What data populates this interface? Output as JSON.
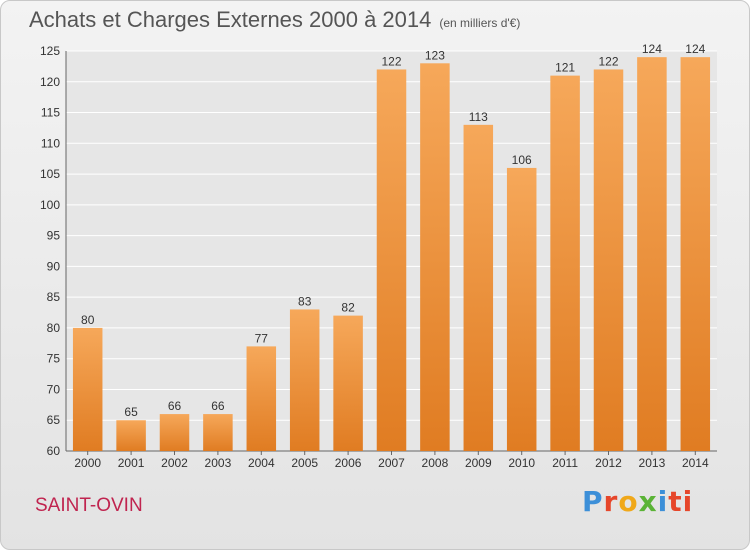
{
  "header": {
    "title": "Achats et Charges Externes 2000 à 2014",
    "subtitle": "(en milliers d'€)"
  },
  "footer": {
    "commune": "SAINT-OVIN",
    "logo_letters": [
      "P",
      "r",
      "o",
      "x",
      "i",
      "ti"
    ]
  },
  "colors": {
    "bar_light": "#f6a85a",
    "bar_dark": "#e07c22",
    "grid": "#ffffff",
    "commune": "#c0244f"
  },
  "chart_data": {
    "type": "bar",
    "title": "Achats et Charges Externes 2000 à 2014",
    "subtitle": "(en milliers d'€)",
    "categories": [
      "2000",
      "2001",
      "2002",
      "2003",
      "2004",
      "2005",
      "2006",
      "2007",
      "2008",
      "2009",
      "2010",
      "2011",
      "2012",
      "2013",
      "2014"
    ],
    "values": [
      80,
      65,
      66,
      66,
      77,
      83,
      82,
      122,
      123,
      113,
      106,
      121,
      122,
      124,
      124
    ],
    "ylim": [
      60,
      125
    ],
    "yticks": [
      60,
      65,
      70,
      75,
      80,
      85,
      90,
      95,
      100,
      105,
      110,
      115,
      120,
      125
    ],
    "grid": true,
    "xlabel": "",
    "ylabel": ""
  }
}
